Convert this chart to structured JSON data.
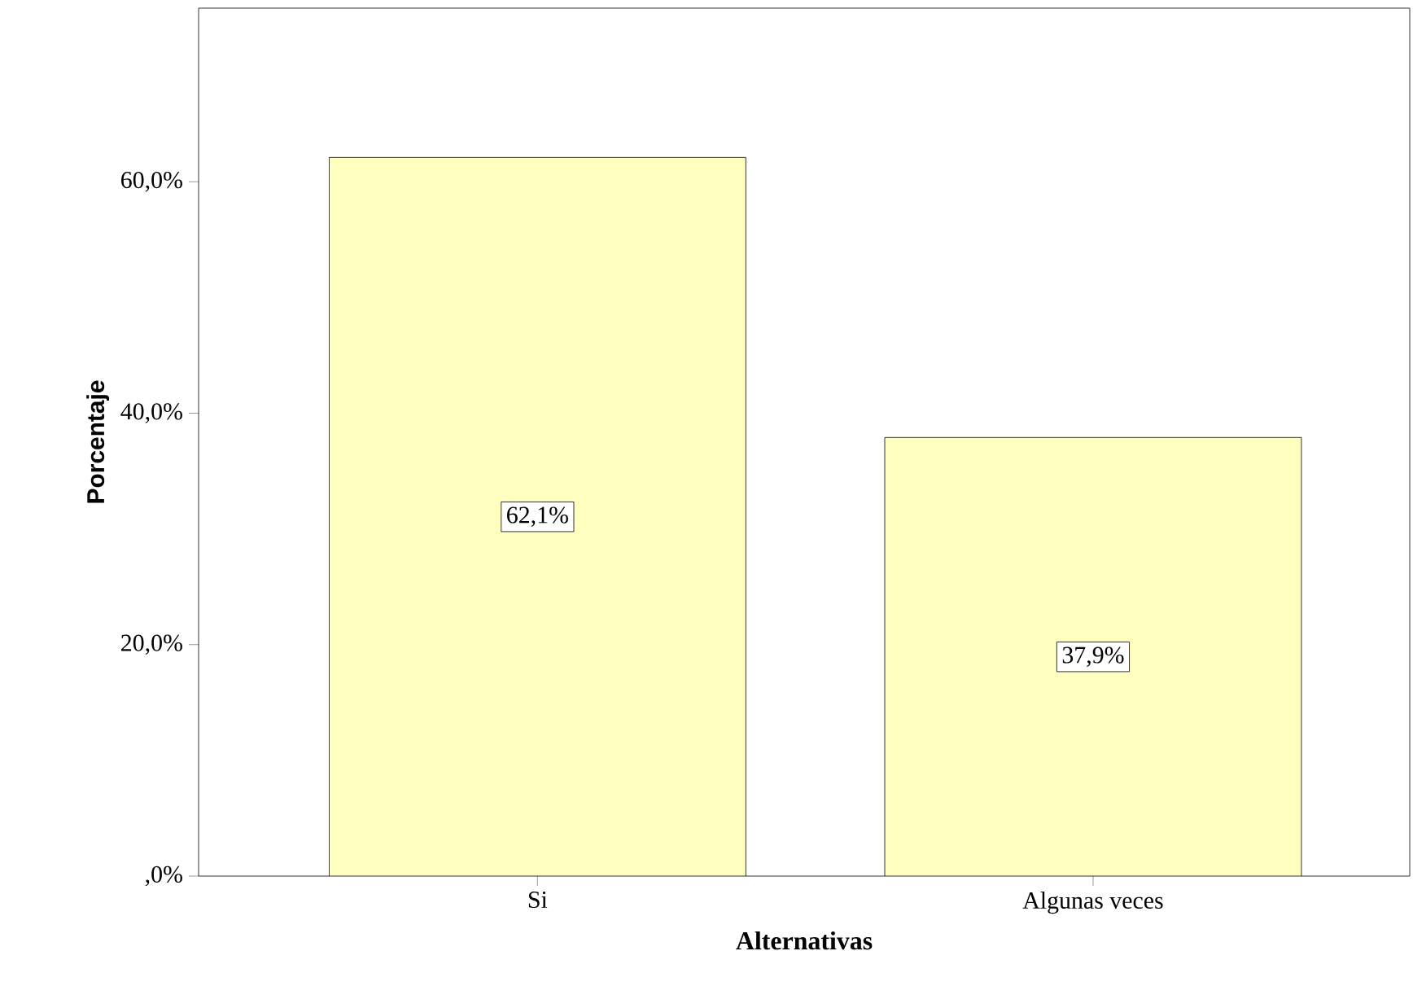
{
  "chart_data": {
    "type": "bar",
    "xlabel": "Alternativas",
    "ylabel": "Porcentaje",
    "categories": [
      "Si",
      "Algunas veces"
    ],
    "values": [
      62.1,
      37.9
    ],
    "color": "#ffffc0",
    "value_labels": [
      "62,1%",
      "37,9%"
    ],
    "ylim": [
      0,
      75
    ],
    "yticks": [
      {
        "value": 0,
        "label": ",0%"
      },
      {
        "value": 20,
        "label": "20,0%"
      },
      {
        "value": 40,
        "label": "40,0%"
      },
      {
        "value": 60,
        "label": "60,0%"
      }
    ]
  }
}
